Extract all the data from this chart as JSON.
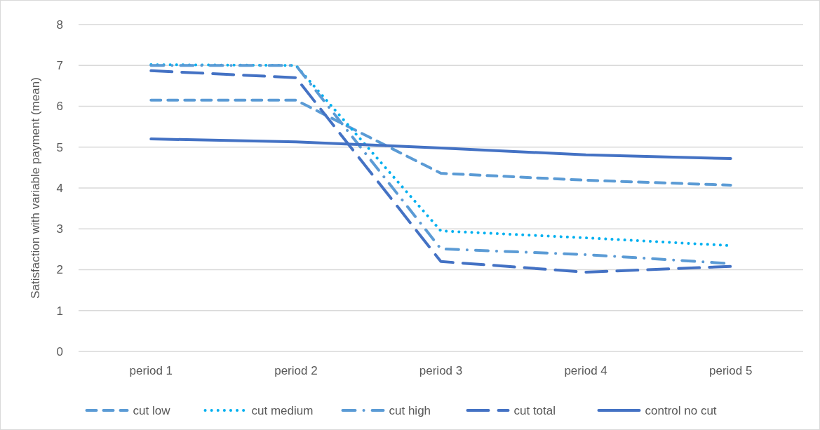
{
  "chart_data": {
    "type": "line",
    "ylabel": "Satisfaction with variable payment (mean)",
    "categories": [
      "period 1",
      "period 2",
      "period 3",
      "period 4",
      "period 5"
    ],
    "ylim": [
      0,
      8
    ],
    "yticks": [
      0,
      1,
      2,
      3,
      4,
      5,
      6,
      7,
      8
    ],
    "grid": "y",
    "legend": "bottom",
    "marker": "none",
    "series": [
      {
        "name": "cut low",
        "color": "#5b9bd5",
        "line_style": "dashed",
        "values": [
          6.15,
          6.15,
          4.36,
          4.19,
          4.07
        ]
      },
      {
        "name": "cut medium",
        "color": "#00b0f0",
        "line_style": "dotted",
        "values": [
          7.02,
          7.0,
          2.95,
          2.78,
          2.59
        ]
      },
      {
        "name": "cut high",
        "color": "#5b9bd5",
        "line_style": "dashdot",
        "values": [
          7.0,
          7.0,
          2.51,
          2.37,
          2.15
        ]
      },
      {
        "name": "cut total",
        "color": "#4472c4",
        "line_style": "longdash",
        "values": [
          6.87,
          6.7,
          2.2,
          1.94,
          2.08
        ]
      },
      {
        "name": "control no cut",
        "color": "#4472c4",
        "line_style": "solid",
        "values": [
          5.2,
          5.13,
          4.98,
          4.81,
          4.72
        ]
      }
    ]
  }
}
